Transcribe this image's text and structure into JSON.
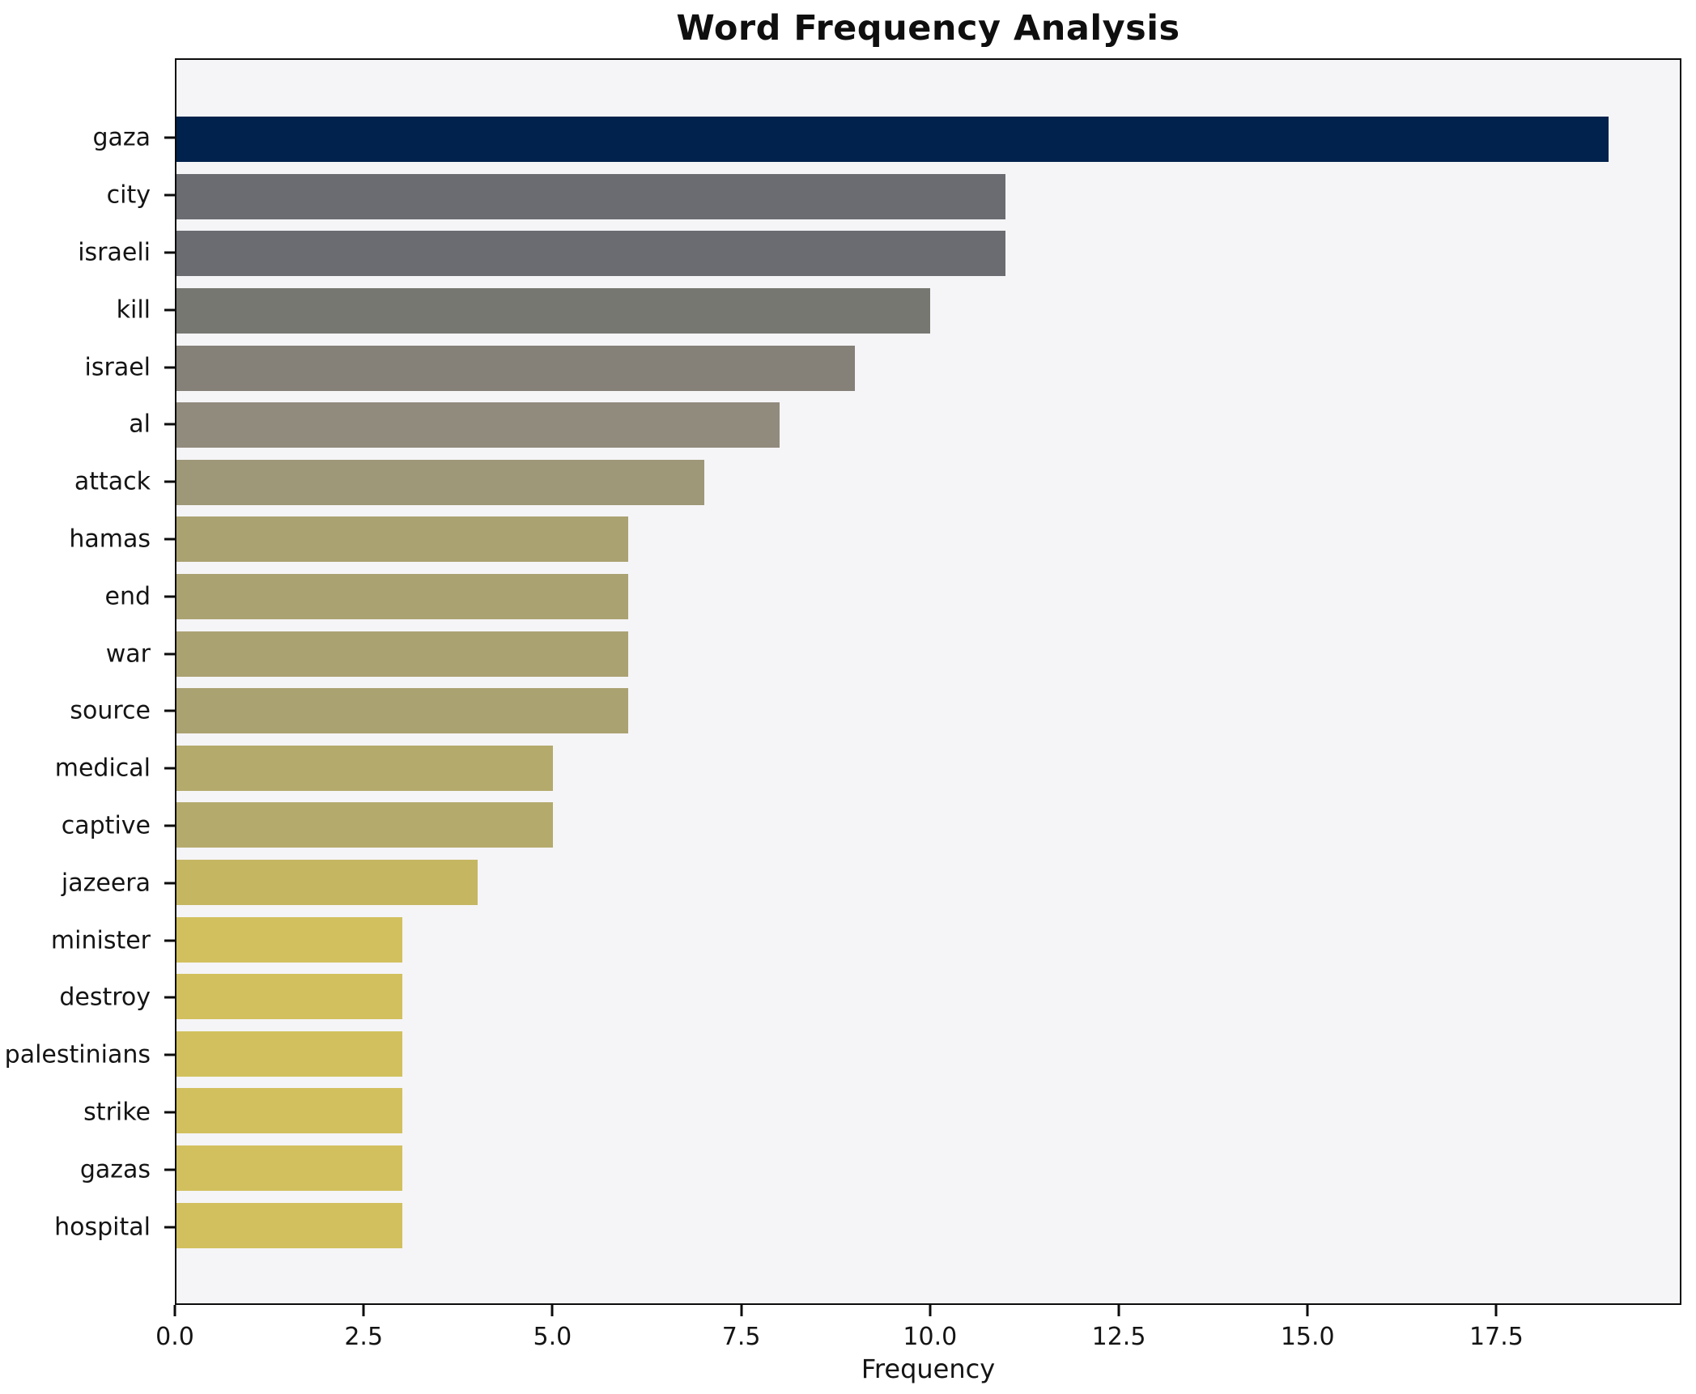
{
  "chart_data": {
    "type": "bar",
    "orientation": "horizontal",
    "title": "Word Frequency Analysis",
    "xlabel": "Frequency",
    "ylabel": "",
    "categories": [
      "gaza",
      "city",
      "israeli",
      "kill",
      "israel",
      "al",
      "attack",
      "hamas",
      "end",
      "war",
      "source",
      "medical",
      "captive",
      "jazeera",
      "minister",
      "destroy",
      "palestinians",
      "strike",
      "gazas",
      "hospital"
    ],
    "values": [
      19,
      11,
      11,
      10,
      9,
      8,
      7,
      6,
      6,
      6,
      6,
      5,
      5,
      4,
      3,
      3,
      3,
      3,
      3,
      3
    ],
    "bar_colors": [
      "#01224c",
      "#6b6c71",
      "#6b6c71",
      "#767771",
      "#858078",
      "#918b7d",
      "#9e9778",
      "#aba272",
      "#aba272",
      "#aba272",
      "#aba272",
      "#b4aa6c",
      "#b4aa6c",
      "#c5b662",
      "#d2c05e",
      "#d2c05e",
      "#d2c05e",
      "#d2c05e",
      "#d2c05e",
      "#d2c05e"
    ],
    "xlim": [
      0,
      19.95
    ],
    "xticks": [
      0,
      2.5,
      5,
      7.5,
      10,
      12.5,
      15,
      17.5
    ],
    "xtick_labels": [
      "0.0",
      "2.5",
      "5.0",
      "7.5",
      "10.0",
      "12.5",
      "15.0",
      "17.5"
    ],
    "grid": false,
    "legend": null,
    "axes_facecolor": "#f5f5f7",
    "figure_facecolor": "#ffffff",
    "spine_color": "#0c0c0c"
  }
}
